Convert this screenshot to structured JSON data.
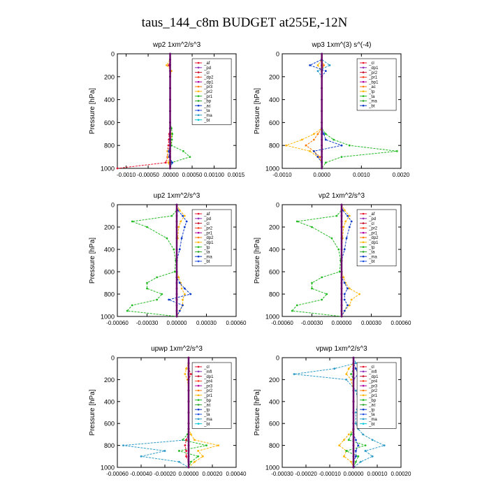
{
  "figure": {
    "title": "taus_144_c8m  BUDGET at255E,-12N"
  },
  "chart_data": [
    {
      "type": "line",
      "title": "wp2   1xm^2/s^3",
      "ylabel": "Pressure [hPa]",
      "ylim": [
        1000,
        0
      ],
      "yticks": [
        0,
        200,
        400,
        600,
        800,
        1000
      ],
      "xlim": [
        -0.0012,
        0.0015
      ],
      "xticks": [
        -0.001,
        -0.0005,
        0,
        0.0005,
        0.001,
        0.0015
      ],
      "xtick_labels": [
        "-0.0010",
        "-0.00050",
        ".00000",
        "0.00050",
        "0.00100",
        "0.0015"
      ],
      "legend": [
        "_af",
        "_pd",
        "_cl",
        "_dp2",
        "_dp1",
        "_pr3",
        "_pr2",
        "_pr1",
        "_bp",
        "_ac",
        "_ta",
        "_ma",
        "_bt"
      ],
      "legend_position": "top-right",
      "levels": [
        0,
        50,
        100,
        150,
        200,
        300,
        400,
        500,
        600,
        650,
        700,
        750,
        800,
        850,
        900,
        950,
        1000
      ],
      "series": [
        {
          "name": "_cl",
          "color": "#e8102a",
          "values": [
            0,
            0,
            -3e-05,
            2e-05,
            0,
            0,
            0,
            0,
            0,
            0,
            -2e-05,
            -3e-05,
            -4e-05,
            -6e-05,
            -6e-05,
            -0.0001,
            -0.0012
          ]
        },
        {
          "name": "_pr1",
          "color": "#ffb400",
          "values": [
            0,
            0,
            -8e-05,
            3e-05,
            0,
            0,
            0,
            0,
            0,
            0,
            3e-05,
            3e-05,
            2e-05,
            -6e-05,
            -5e-05,
            -4e-05,
            0
          ]
        },
        {
          "name": "_bp",
          "color": "#22bb22",
          "values": [
            0,
            0,
            0,
            0,
            0,
            0,
            0,
            0,
            0,
            3e-05,
            5e-05,
            4e-05,
            3e-05,
            0.0003,
            0.00045,
            3e-05,
            0
          ]
        },
        {
          "name": "_ta",
          "color": "#0a38c8",
          "values": [
            0,
            0,
            0,
            0,
            0,
            0,
            0,
            0,
            0,
            0,
            0,
            0,
            0,
            -3e-05,
            -2e-05,
            5e-05,
            0
          ]
        },
        {
          "name": "_bt",
          "color": "#6b0a6b",
          "values": [
            0,
            0,
            0,
            0,
            0,
            0,
            0,
            0,
            0,
            0,
            0,
            0,
            0,
            0,
            0,
            0,
            0
          ]
        }
      ]
    },
    {
      "type": "line",
      "title": "wp3   1xm^(3) s^(-4)",
      "ylabel": "Pressure [hPa]",
      "ylim": [
        1000,
        0
      ],
      "yticks": [
        0,
        200,
        400,
        600,
        800,
        1000
      ],
      "xlim": [
        -0.001,
        0.002
      ],
      "xticks": [
        -0.001,
        0,
        0.001,
        0.002
      ],
      "xtick_labels": [
        "-0.0010",
        "0.0000",
        "0.0010",
        "0.0020"
      ],
      "legend": [
        "_cl",
        "_dp1",
        "_pr2",
        "_pr1",
        "_bp1",
        "_ac",
        "_tp",
        "_ta",
        "_ma",
        "_bt"
      ],
      "legend_position": "top-right",
      "levels": [
        0,
        50,
        100,
        150,
        200,
        300,
        400,
        500,
        600,
        650,
        700,
        750,
        800,
        850,
        900,
        950,
        1000
      ],
      "series": [
        {
          "name": "_pr1",
          "color": "#ffb400",
          "values": [
            0,
            0,
            -0.0001,
            0,
            0,
            0,
            0,
            0,
            0,
            0,
            -0.0002,
            -0.0005,
            -0.0009,
            -0.0003,
            -0.0001,
            0,
            0
          ]
        },
        {
          "name": "_pr2",
          "color": "#ff7a00",
          "values": [
            0,
            0,
            5e-05,
            0,
            0,
            0,
            0,
            0,
            0,
            0,
            -0.0001,
            -0.0002,
            -0.0004,
            -0.0002,
            -5e-05,
            0,
            0
          ]
        },
        {
          "name": "_ac",
          "color": "#22bb22",
          "values": [
            0,
            0,
            0,
            0,
            0,
            0,
            0,
            0,
            0,
            0,
            0.0001,
            0.0003,
            0.0007,
            0.0019,
            0.0005,
            0.0001,
            0
          ]
        },
        {
          "name": "_ta",
          "color": "#0a38c8",
          "values": [
            0,
            0,
            -0.0003,
            0.0001,
            0,
            0,
            0,
            0,
            0,
            0,
            5e-05,
            0.0001,
            0.0005,
            -0.0002,
            -0.0001,
            0,
            0
          ]
        },
        {
          "name": "_ma",
          "color": "#2a9ac8",
          "values": [
            0,
            0,
            0.0002,
            -0.0001,
            0,
            0,
            0,
            0,
            0,
            0,
            0,
            0,
            0,
            0,
            0,
            0,
            0
          ]
        },
        {
          "name": "_bt",
          "color": "#6b0a6b",
          "values": [
            0,
            0,
            0,
            0,
            0,
            0,
            0,
            0,
            0,
            0,
            0,
            0,
            0,
            0,
            0,
            0,
            0
          ]
        }
      ]
    },
    {
      "type": "line",
      "title": "up2   1xm^2/s^3",
      "ylabel": "Pressure [hPa]",
      "ylim": [
        1000,
        0
      ],
      "yticks": [
        0,
        200,
        400,
        600,
        800,
        1000
      ],
      "xlim": [
        -0.0006,
        0.0006
      ],
      "xticks": [
        -0.0006,
        -0.0003,
        0,
        0.0003,
        0.0006
      ],
      "xtick_labels": [
        "-0.00060",
        "-0.00030",
        "0.00000",
        "0.00030",
        "0.00060"
      ],
      "legend": [
        "_af",
        "_pd",
        "_cl",
        "_pr2",
        "_pr1",
        "_dp2",
        "_dp1",
        "_tp",
        "_ta",
        "_ma",
        "_bt"
      ],
      "legend_position": "top-right",
      "levels": [
        0,
        50,
        100,
        150,
        200,
        300,
        400,
        500,
        600,
        650,
        700,
        750,
        800,
        850,
        900,
        950,
        1000
      ],
      "series": [
        {
          "name": "_pr1",
          "color": "#ffb400",
          "values": [
            0,
            3e-05,
            8e-05,
            4e-05,
            2e-05,
            1e-05,
            0,
            0,
            0,
            2e-05,
            4e-05,
            5e-05,
            8e-05,
            6e-05,
            6e-05,
            3e-05,
            0
          ]
        },
        {
          "name": "_dp1",
          "color": "#22bb22",
          "values": [
            0,
            0,
            -5e-05,
            -0.00045,
            -0.0003,
            -0.0001,
            -3e-05,
            -1e-05,
            -2e-05,
            -0.0002,
            -0.0003,
            -0.0003,
            -0.00015,
            -0.0002,
            -0.00045,
            -0.0005,
            0
          ]
        },
        {
          "name": "_ta",
          "color": "#0a38c8",
          "values": [
            0,
            1e-05,
            6e-05,
            0.0001,
            8e-05,
            5e-05,
            3e-05,
            0,
            0,
            0,
            3e-05,
            8e-05,
            0.00014,
            -8e-05,
            6e-05,
            3e-05,
            0
          ]
        },
        {
          "name": "_bt",
          "color": "#6b0a6b",
          "values": [
            0,
            0,
            0,
            0,
            0,
            0,
            0,
            0,
            0,
            0,
            0,
            0,
            0,
            0,
            0,
            0,
            0
          ]
        }
      ]
    },
    {
      "type": "line",
      "title": "vp2   1xm^2/s^3",
      "ylabel": "Pressure [hPa]",
      "ylim": [
        1000,
        0
      ],
      "yticks": [
        0,
        200,
        400,
        600,
        800,
        1000
      ],
      "xlim": [
        -0.0006,
        0.0006
      ],
      "xticks": [
        -0.0006,
        -0.0003,
        0,
        0.0003,
        0.0006
      ],
      "xtick_labels": [
        "-0.00060",
        "-0.00030",
        "0.00000",
        "0.00030",
        "0.00060"
      ],
      "legend": [
        "_af",
        "_pd",
        "_cl",
        "_pr2",
        "_pr1",
        "_dp2",
        "_dp1",
        "_tp",
        "_ta",
        "_ma",
        "_bt"
      ],
      "legend_position": "top-right",
      "levels": [
        0,
        50,
        100,
        150,
        200,
        300,
        400,
        500,
        600,
        650,
        700,
        750,
        800,
        850,
        900,
        950,
        1000
      ],
      "series": [
        {
          "name": "_pr1",
          "color": "#ffb400",
          "values": [
            0,
            3e-05,
            8e-05,
            4e-05,
            2e-05,
            1e-05,
            0,
            0,
            0,
            2e-05,
            4e-05,
            8e-05,
            0.00018,
            0.0001,
            8e-05,
            3e-05,
            0
          ]
        },
        {
          "name": "_dp1",
          "color": "#22bb22",
          "values": [
            0,
            0,
            -5e-05,
            -0.00045,
            -0.0003,
            -0.0001,
            -3e-05,
            -1e-05,
            -2e-05,
            -0.0002,
            -0.0003,
            -0.0003,
            -0.00015,
            -0.0002,
            -0.00045,
            -0.0005,
            0
          ]
        },
        {
          "name": "_ta",
          "color": "#0a38c8",
          "values": [
            0,
            1e-05,
            6e-05,
            0.0001,
            8e-05,
            5e-05,
            3e-05,
            0,
            0,
            0,
            3e-05,
            6e-05,
            3e-05,
            3e-05,
            6e-05,
            3e-05,
            0
          ]
        },
        {
          "name": "_bt",
          "color": "#6b0a6b",
          "values": [
            0,
            0,
            0,
            0,
            0,
            0,
            0,
            0,
            0,
            0,
            0,
            0,
            0,
            0,
            0,
            0,
            0
          ]
        }
      ]
    },
    {
      "type": "line",
      "title": "upwp   1xm^2/s^3",
      "ylabel": "Pressure [hPa]",
      "ylim": [
        1000,
        0
      ],
      "yticks": [
        0,
        200,
        400,
        600,
        800,
        1000
      ],
      "xlim": [
        -0.0006,
        0.0004
      ],
      "xticks": [
        -0.0006,
        -0.0004,
        -0.0002,
        0,
        0.0002,
        0.0004
      ],
      "xtick_labels": [
        "-0.00060",
        "-0.00040",
        "-0.00020",
        "0.00000",
        "0.00020",
        "0.00040"
      ],
      "legend": [
        "_cl",
        "_mfl",
        "_dp1",
        "_pr4",
        "_pr3",
        "_pr2",
        "_pr1",
        "_bp",
        "_ac",
        "_tp",
        "_ta",
        "_ma",
        "_bt"
      ],
      "legend_position": "top-right",
      "levels": [
        0,
        50,
        100,
        150,
        200,
        300,
        400,
        500,
        600,
        650,
        700,
        750,
        800,
        850,
        900,
        950,
        1000
      ],
      "series": [
        {
          "name": "_pr1",
          "color": "#ffb400",
          "values": [
            0,
            0,
            -2e-05,
            -3e-05,
            -1e-05,
            0,
            0,
            0,
            0,
            0,
            2e-05,
            5e-05,
            0.00025,
            8e-05,
            0.00012,
            5e-05,
            0
          ]
        },
        {
          "name": "_bp",
          "color": "#22bb22",
          "values": [
            0,
            0,
            0,
            0,
            0,
            0,
            0,
            0,
            0,
            0,
            -1e-05,
            -5e-05,
            0.00015,
            -8e-05,
            8e-05,
            2e-05,
            0
          ]
        },
        {
          "name": "_ma",
          "color": "#2a9ac8",
          "values": [
            0,
            0,
            0,
            0,
            0,
            0,
            0,
            0,
            0,
            0,
            0,
            -2e-05,
            -0.00055,
            -0.0002,
            -0.0004,
            -8e-05,
            0
          ]
        },
        {
          "name": "_cl",
          "color": "#e8102a",
          "values": [
            0,
            0,
            0,
            2e-05,
            0,
            0,
            0,
            0,
            0,
            0,
            0,
            -2e-05,
            -3e-05,
            -2e-05,
            -2e-05,
            0,
            0
          ]
        },
        {
          "name": "_bt",
          "color": "#6b0a6b",
          "values": [
            0,
            0,
            0,
            0,
            0,
            0,
            0,
            0,
            0,
            0,
            0,
            0,
            0,
            0,
            0,
            0,
            0
          ]
        }
      ]
    },
    {
      "type": "line",
      "title": "vpwp   1xm^2/s^3",
      "ylabel": "Pressure [hPa]",
      "ylim": [
        1000,
        0
      ],
      "yticks": [
        0,
        200,
        400,
        600,
        800,
        1000
      ],
      "xlim": [
        -0.0003,
        0.0002
      ],
      "xticks": [
        -0.0003,
        -0.0002,
        -0.0001,
        0,
        0.0001,
        0.0002
      ],
      "xtick_labels": [
        "-0.00030",
        "-0.00020",
        "-0.00010",
        "0.00000",
        "0.00010",
        "0.00020"
      ],
      "legend": [
        "_cl",
        "_mfl",
        "_dp1",
        "_pr4",
        "_pr3",
        "_pr2",
        "_pr1",
        "_bp",
        "_ac",
        "_tp",
        "_ta",
        "_ma",
        "_bt"
      ],
      "legend_position": "top-right",
      "levels": [
        0,
        50,
        100,
        150,
        200,
        300,
        400,
        500,
        600,
        650,
        700,
        750,
        800,
        850,
        900,
        950,
        1000
      ],
      "series": [
        {
          "name": "_ma",
          "color": "#2a9ac8",
          "values": [
            0,
            1e-05,
            -8e-05,
            -0.00025,
            -3e-05,
            1e-05,
            2e-05,
            1e-05,
            1e-05,
            2e-05,
            4e-05,
            8e-05,
            0.00013,
            5e-05,
            8e-05,
            3e-05,
            0
          ]
        },
        {
          "name": "_pr1",
          "color": "#ffb400",
          "values": [
            0,
            0,
            -2e-05,
            -3e-05,
            -1e-05,
            0,
            0,
            0,
            0,
            0,
            -2e-05,
            -4e-05,
            -6e-05,
            -3e-05,
            -4e-05,
            -1e-05,
            0
          ]
        },
        {
          "name": "_bp",
          "color": "#22bb22",
          "values": [
            0,
            0,
            0,
            -1e-05,
            0,
            0,
            0,
            0,
            0,
            0,
            -1e-05,
            -2e-05,
            5e-05,
            -3e-05,
            2e-05,
            1e-05,
            0
          ]
        },
        {
          "name": "_ta",
          "color": "#0a38c8",
          "values": [
            0,
            0,
            1e-05,
            2e-05,
            0,
            0,
            0,
            0,
            0,
            0,
            0,
            1e-05,
            2e-05,
            1e-05,
            1e-05,
            0,
            0
          ]
        },
        {
          "name": "_bt",
          "color": "#6b0a6b",
          "values": [
            0,
            0,
            0,
            0,
            0,
            0,
            0,
            0,
            0,
            0,
            0,
            0,
            0,
            0,
            0,
            0,
            0
          ]
        }
      ]
    }
  ]
}
